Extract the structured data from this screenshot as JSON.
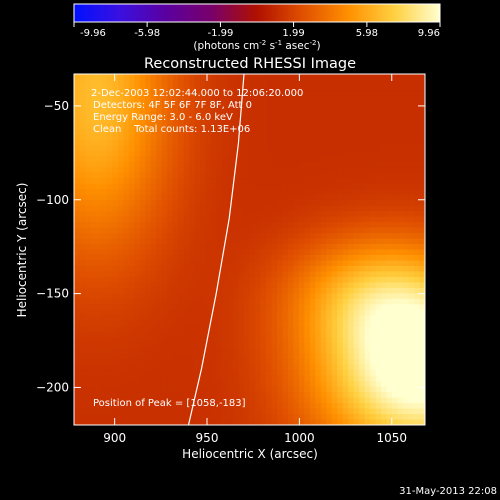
{
  "chart_data": {
    "type": "heatmap",
    "title": "Reconstructed RHESSI Image",
    "xlabel": "Heliocentric X (arcsec)",
    "ylabel": "Heliocentric Y (arcsec)",
    "xlim": [
      878,
      1068
    ],
    "ylim": [
      -220,
      -33
    ],
    "x_ticks": [
      900,
      950,
      1000,
      1050
    ],
    "y_ticks": [
      -50,
      -100,
      -150,
      -200
    ],
    "colorbar": {
      "range": [
        -9.96,
        9.96
      ],
      "ticks": [
        "-9.96",
        "-5.98",
        "-1.99",
        "1.99",
        "5.98",
        "9.96"
      ],
      "label_prefix": "(photons cm",
      "label_sup1": "-2",
      "label_mid": " s",
      "label_sup2": "-1",
      "label_mid2": " asec",
      "label_sup3": "-2",
      "label_suffix": ")",
      "colors": [
        "#0010ff",
        "#3a10e0",
        "#5a00a0",
        "#78006a",
        "#b01000",
        "#e05000",
        "#ff9000",
        "#ffd040",
        "#ffffd0"
      ]
    },
    "annotations": [
      " 2-Dec-2003 12:02:44.000 to 12:06:20.000",
      "Detectors: 4F 5F 6F 7F 8F, Att 0",
      "Energy Range: 3.0 - 6.0 keV",
      "Clean    Total counts: 1.13E+06"
    ],
    "peak_label": "Position of Peak = [1058,-183]",
    "peak": [
      1058,
      -183
    ],
    "limb_curve": [
      [
        970,
        -33
      ],
      [
        967,
        -70
      ],
      [
        962,
        -110
      ],
      [
        955,
        -150
      ],
      [
        947,
        -190
      ],
      [
        940,
        -220
      ]
    ],
    "sources": [
      {
        "x": 1065,
        "y": -190,
        "sx": 55,
        "sy": 48,
        "amp": 9.9
      },
      {
        "x": 1040,
        "y": -150,
        "sx": 45,
        "sy": 30,
        "amp": 3.5
      },
      {
        "x": 890,
        "y": -45,
        "sx": 40,
        "sy": 80,
        "amp": 5.5
      }
    ],
    "background": 1.2
  },
  "timestamp": "31-May-2013 22:08"
}
